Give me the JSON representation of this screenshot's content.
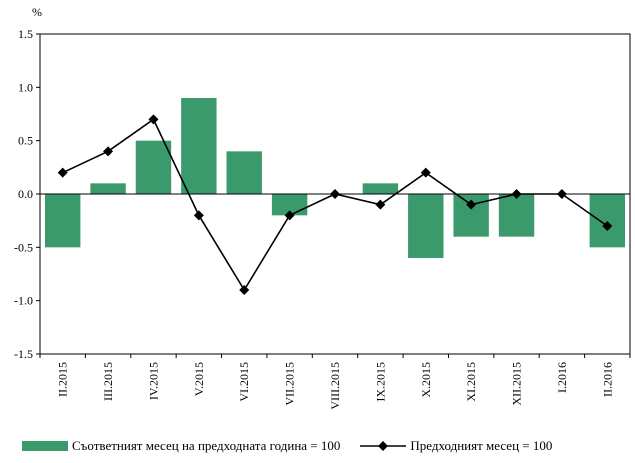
{
  "chart_data": {
    "type": "bar",
    "ylabel": "%",
    "ylim": [
      -1.5,
      1.5
    ],
    "yticks": [
      "-1.5",
      "-1.0",
      "-0.5",
      "0.0",
      "0.5",
      "1.0",
      "1.5"
    ],
    "categories": [
      "II.2015",
      "III.2015",
      "IV.2015",
      "V.2015",
      "VI.2015",
      "VII.2015",
      "VIII.2015",
      "IX.2015",
      "X.2015",
      "XI.2015",
      "XII.2015",
      "I.2016",
      "II.2016"
    ],
    "series": [
      {
        "name": "Съответният месец на предходната година = 100",
        "type": "bar",
        "color": "#3a9a6b",
        "values": [
          -0.5,
          0.1,
          0.5,
          0.9,
          0.4,
          -0.2,
          0.0,
          0.1,
          -0.6,
          -0.4,
          -0.4,
          0.0,
          -0.5
        ]
      },
      {
        "name": "Предходният месец = 100",
        "type": "line",
        "color": "#000000",
        "values": [
          0.2,
          0.4,
          0.7,
          -0.2,
          -0.9,
          -0.2,
          0.0,
          -0.1,
          0.2,
          -0.1,
          0.0,
          0.0,
          -0.3
        ]
      }
    ],
    "grid": false,
    "legend": "bottom"
  }
}
